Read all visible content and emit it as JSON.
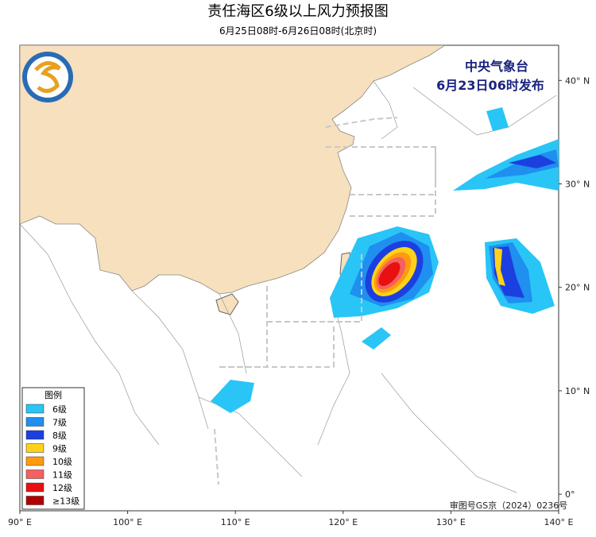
{
  "header": {
    "title": "责任海区6级以上风力预报图",
    "subtitle": "6月25日08时-6月26日08时(北京时)"
  },
  "issuer": {
    "agency": "中央气象台",
    "issued": "6月23日06时发布"
  },
  "map": {
    "lon_ticks": [
      {
        "value": 90,
        "label": "90° E"
      },
      {
        "value": 100,
        "label": "100° E"
      },
      {
        "value": 110,
        "label": "110° E"
      },
      {
        "value": 120,
        "label": "120° E"
      },
      {
        "value": 130,
        "label": "130° E"
      },
      {
        "value": 140,
        "label": "140° E"
      }
    ],
    "lat_ticks": [
      {
        "value": 0,
        "label": "0°"
      },
      {
        "value": 10,
        "label": "10° N"
      },
      {
        "value": 20,
        "label": "20° N"
      },
      {
        "value": 30,
        "label": "30° N"
      },
      {
        "value": 40,
        "label": "40° N"
      }
    ],
    "lon_range": [
      90,
      140
    ],
    "lat_range": [
      -1.6,
      43.4
    ]
  },
  "legend": {
    "title": "图例",
    "items": [
      {
        "label": "6级",
        "color": "#29c5f6"
      },
      {
        "label": "7级",
        "color": "#1f8ff0"
      },
      {
        "label": "8级",
        "color": "#1c3fe0"
      },
      {
        "label": "9级",
        "color": "#ffd21a"
      },
      {
        "label": "10级",
        "color": "#ff9a10"
      },
      {
        "label": "11级",
        "color": "#f56060"
      },
      {
        "label": "12级",
        "color": "#e81010"
      },
      {
        "label": "≥13级",
        "color": "#b00000"
      }
    ]
  },
  "note": "审图号GS京（2024）0236号"
}
